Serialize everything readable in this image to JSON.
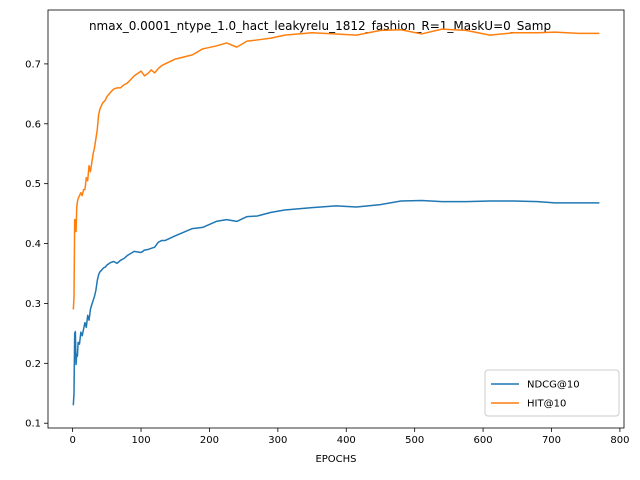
{
  "chart_data": {
    "type": "line",
    "title": "nmax_0.0001_ntype_1.0_hact_leakyrelu_1812_fashion_R=1_MaskU=0_Samp",
    "xlabel": "EPOCHS",
    "ylabel": "",
    "xlim": [
      -36,
      806
    ],
    "ylim": [
      0.092,
      0.79
    ],
    "xticks": [
      0,
      100,
      200,
      300,
      400,
      500,
      600,
      700,
      800
    ],
    "yticks": [
      0.1,
      0.2,
      0.3,
      0.4,
      0.5,
      0.6,
      0.7
    ],
    "grid": false,
    "legend_position": "lower-right",
    "series": [
      {
        "name": "NDCG@10",
        "color": "#1f77b4",
        "x": [
          1,
          2,
          3,
          4,
          5,
          6,
          7,
          8,
          10,
          12,
          14,
          16,
          18,
          20,
          22,
          24,
          26,
          28,
          30,
          32,
          34,
          36,
          38,
          40,
          42,
          44,
          46,
          48,
          50,
          55,
          60,
          65,
          70,
          75,
          80,
          90,
          100,
          105,
          110,
          115,
          120,
          125,
          130,
          135,
          150,
          175,
          190,
          210,
          225,
          240,
          255,
          270,
          290,
          310,
          350,
          385,
          415,
          450,
          480,
          510,
          540,
          575,
          610,
          645,
          680,
          705,
          740,
          770
        ],
        "y": [
          0.13,
          0.15,
          0.25,
          0.253,
          0.198,
          0.215,
          0.212,
          0.235,
          0.232,
          0.252,
          0.246,
          0.257,
          0.268,
          0.26,
          0.28,
          0.272,
          0.29,
          0.298,
          0.305,
          0.312,
          0.322,
          0.338,
          0.348,
          0.353,
          0.355,
          0.358,
          0.36,
          0.361,
          0.364,
          0.368,
          0.37,
          0.367,
          0.372,
          0.375,
          0.38,
          0.387,
          0.385,
          0.389,
          0.39,
          0.392,
          0.394,
          0.402,
          0.405,
          0.405,
          0.413,
          0.425,
          0.427,
          0.437,
          0.44,
          0.437,
          0.445,
          0.446,
          0.452,
          0.456,
          0.46,
          0.463,
          0.461,
          0.465,
          0.471,
          0.472,
          0.47,
          0.47,
          0.471,
          0.471,
          0.47,
          0.468,
          0.468,
          0.468
        ]
      },
      {
        "name": "HIT@10",
        "color": "#ff7f0e",
        "x": [
          1,
          2,
          3,
          4,
          5,
          6,
          7,
          8,
          10,
          12,
          14,
          16,
          18,
          20,
          22,
          24,
          26,
          28,
          30,
          32,
          34,
          36,
          38,
          40,
          42,
          44,
          46,
          48,
          50,
          55,
          60,
          65,
          70,
          75,
          80,
          90,
          100,
          105,
          110,
          115,
          120,
          125,
          130,
          135,
          150,
          175,
          190,
          210,
          225,
          240,
          255,
          270,
          290,
          310,
          350,
          385,
          415,
          450,
          480,
          510,
          540,
          575,
          610,
          645,
          680,
          705,
          740,
          770
        ],
        "y": [
          0.29,
          0.31,
          0.44,
          0.44,
          0.42,
          0.46,
          0.47,
          0.475,
          0.48,
          0.485,
          0.48,
          0.49,
          0.49,
          0.51,
          0.505,
          0.53,
          0.52,
          0.535,
          0.55,
          0.56,
          0.575,
          0.59,
          0.615,
          0.625,
          0.63,
          0.635,
          0.637,
          0.64,
          0.645,
          0.652,
          0.658,
          0.66,
          0.66,
          0.665,
          0.668,
          0.68,
          0.688,
          0.68,
          0.684,
          0.69,
          0.685,
          0.692,
          0.697,
          0.7,
          0.708,
          0.715,
          0.725,
          0.73,
          0.735,
          0.728,
          0.738,
          0.74,
          0.743,
          0.748,
          0.752,
          0.75,
          0.748,
          0.756,
          0.757,
          0.75,
          0.758,
          0.756,
          0.748,
          0.752,
          0.752,
          0.753,
          0.751,
          0.751
        ]
      }
    ]
  }
}
